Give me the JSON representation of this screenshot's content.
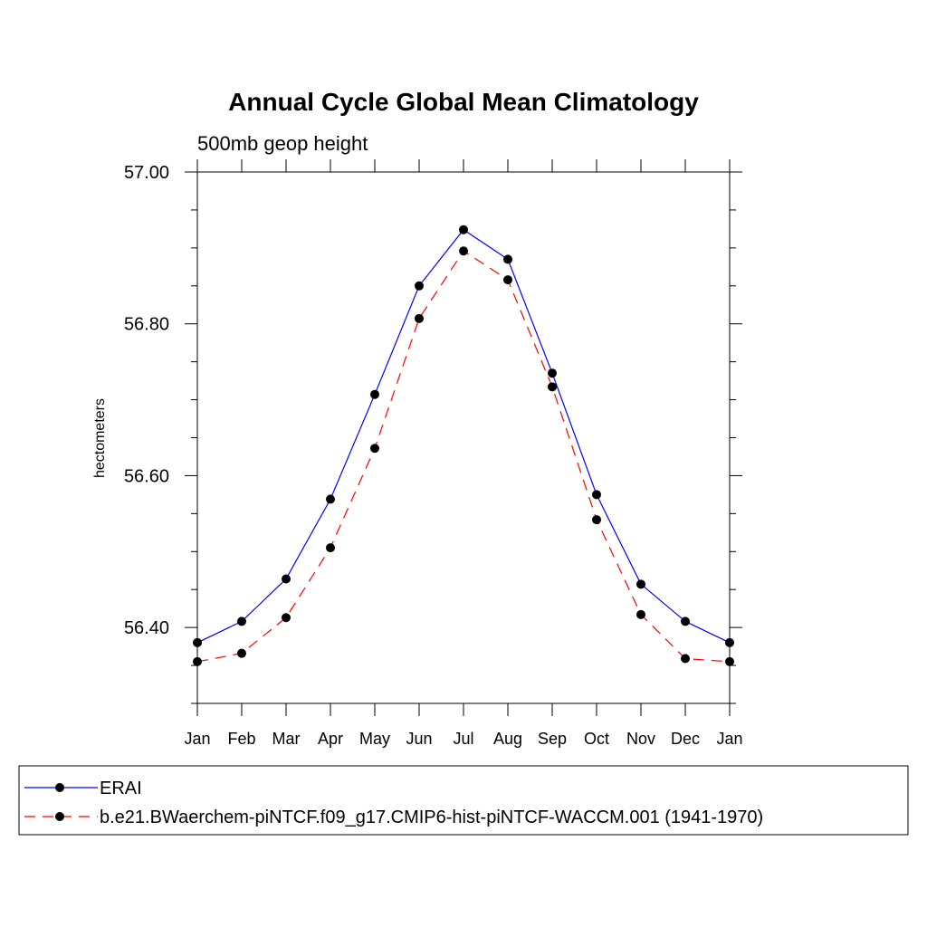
{
  "chart_data": {
    "type": "line",
    "title": "Annual Cycle Global Mean Climatology",
    "subtitle": "500mb geop height",
    "ylabel": "hectometers",
    "xlabel": "",
    "categories": [
      "Jan",
      "Feb",
      "Mar",
      "Apr",
      "May",
      "Jun",
      "Jul",
      "Aug",
      "Sep",
      "Oct",
      "Nov",
      "Dec",
      "Jan"
    ],
    "ylim": [
      56.3,
      57.0
    ],
    "yticks": [
      "57.00",
      "56.80",
      "56.60",
      "56.40"
    ],
    "series": [
      {
        "name": "ERAI",
        "color": "#0000ff",
        "style": "solid",
        "values": [
          56.38,
          56.408,
          56.464,
          56.569,
          56.707,
          56.85,
          56.924,
          56.885,
          56.735,
          56.575,
          56.457,
          56.408,
          56.38
        ]
      },
      {
        "name": "b.e21.BWaerchem-piNTCF.f09_g17.CMIP6-hist-piNTCF-WACCM.001 (1941-1970)",
        "color": "#ff0000",
        "style": "dashed",
        "values": [
          56.355,
          56.366,
          56.413,
          56.505,
          56.636,
          56.807,
          56.896,
          56.858,
          56.717,
          56.542,
          56.417,
          56.359,
          56.355
        ]
      }
    ],
    "marker": "filled-circle",
    "marker_color": "#000000",
    "grid": false,
    "legend_position": "bottom"
  }
}
